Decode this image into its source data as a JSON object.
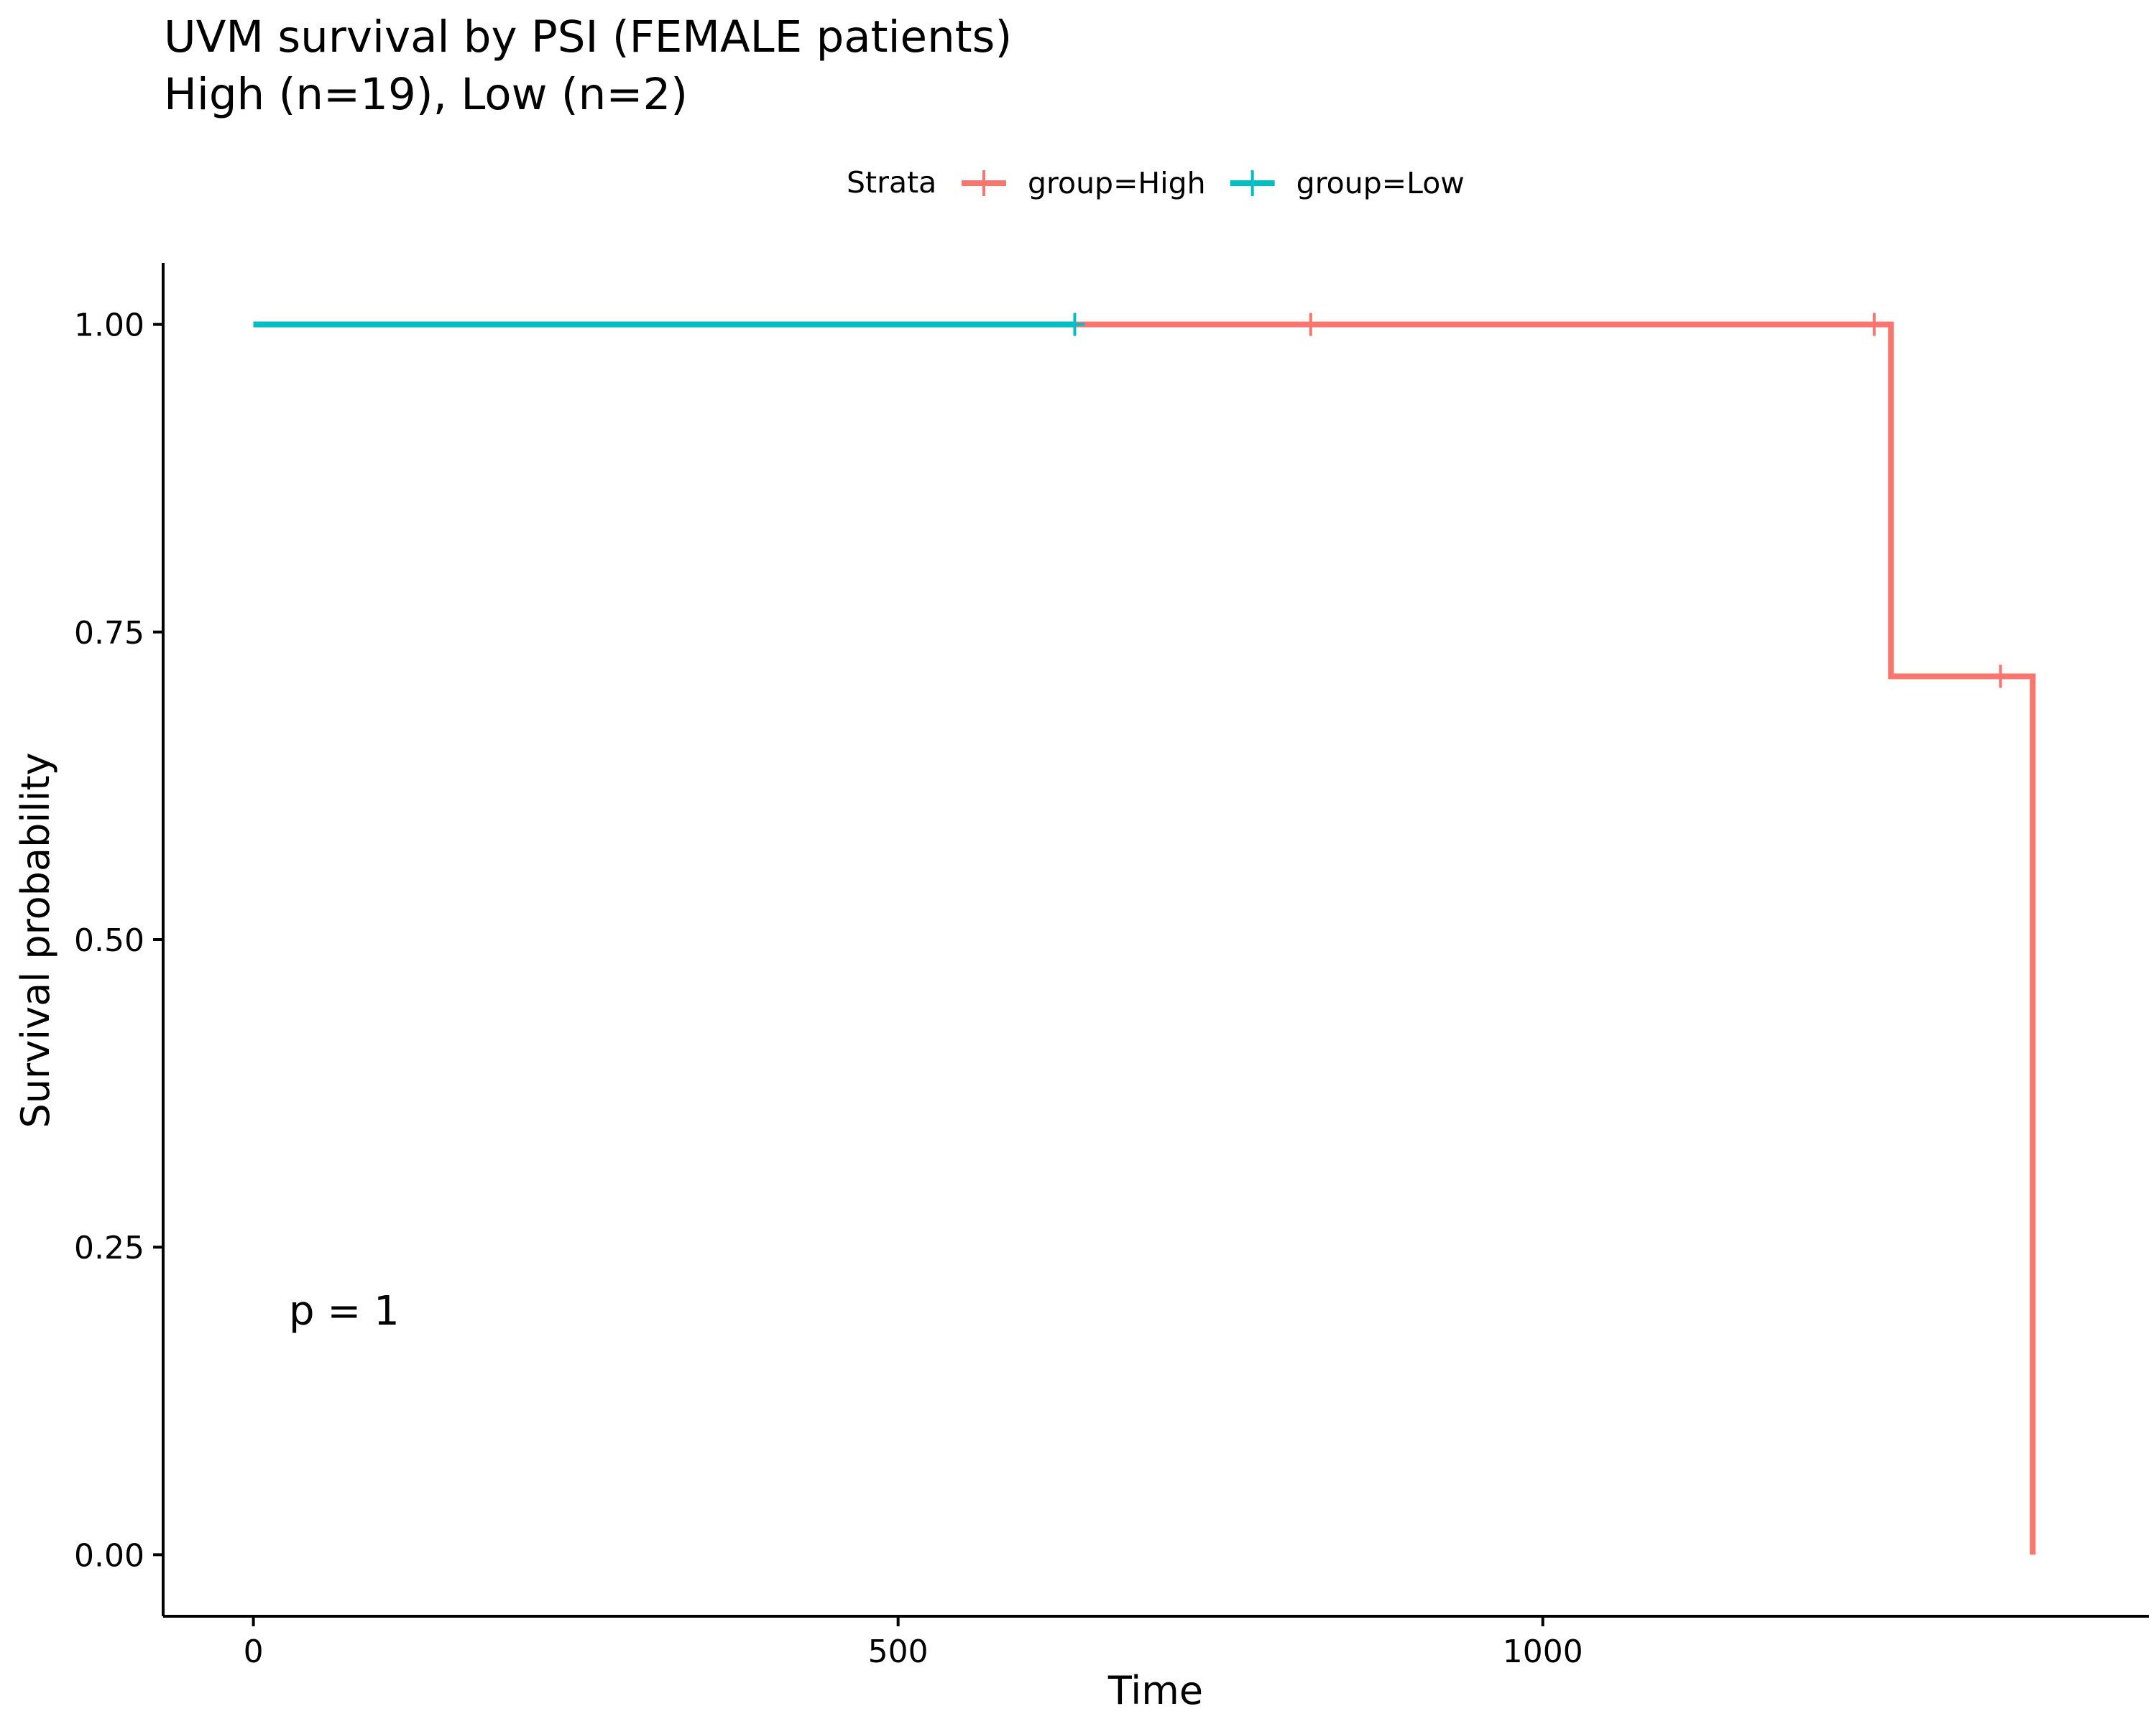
{
  "chart_data": {
    "type": "line",
    "title": "UVM survival by PSI (FEMALE patients)",
    "subtitle": "High (n=19), Low (n=2)",
    "xlabel": "Time",
    "ylabel": "Survival probability",
    "xlim": [
      -70,
      1470
    ],
    "ylim": [
      -0.05,
      1.05
    ],
    "x_ticks": [
      0,
      500,
      1000
    ],
    "x_tick_labels": [
      "0",
      "500",
      "1000"
    ],
    "y_ticks": [
      0.0,
      0.25,
      0.5,
      0.75,
      1.0
    ],
    "y_tick_labels": [
      "0.00",
      "0.25",
      "0.50",
      "0.75",
      "1.00"
    ],
    "grid": false,
    "legend": {
      "title": "Strata",
      "position": "top"
    },
    "annotation": "p = 1",
    "series": [
      {
        "name": "group=High",
        "color": "#F8766D",
        "step_points": [
          [
            0,
            1.0
          ],
          [
            1270,
            1.0
          ],
          [
            1270,
            0.714
          ],
          [
            1380,
            0.714
          ],
          [
            1380,
            0.0
          ]
        ],
        "censor_points": [
          [
            820,
            1.0
          ],
          [
            1257,
            1.0
          ],
          [
            1355,
            0.714
          ]
        ]
      },
      {
        "name": "group=Low",
        "color": "#00BFC4",
        "step_points": [
          [
            0,
            1.0
          ],
          [
            637,
            1.0
          ]
        ],
        "censor_points": [
          [
            637,
            1.0
          ]
        ]
      }
    ]
  }
}
